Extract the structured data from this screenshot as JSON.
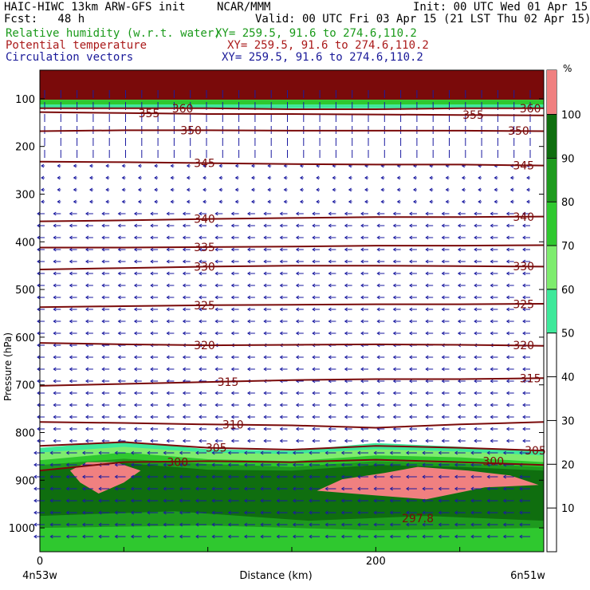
{
  "header": {
    "line1_left": "HAIC-HIWC 13km ARW-GFS init",
    "line1_mid": "NCAR/MMM",
    "line1_right": "Init: 00 UTC Wed 01 Apr 15",
    "line2_left": "Fcst:   48 h",
    "line2_right": "Valid: 00 UTC Fri 03 Apr 15 (21 LST Thu 02 Apr 15)",
    "field1_name": "Relative humidity (w.r.t. water)",
    "field1_xy": "XY= 259.5, 91.6 to 274.6,110.2",
    "field2_name": "Potential temperature",
    "field2_xy": "XY= 259.5, 91.6 to 274.6,110.2",
    "field3_name": "Circulation vectors",
    "field3_xy": "XY= 259.5, 91.6 to 274.6,110.2"
  },
  "colors": {
    "rh_50_60": "#3ee89a",
    "rh_60_70": "#7eec6e",
    "rh_70_80": "#2fc82f",
    "rh_80_90": "#1e9a1e",
    "rh_90_100": "#0f6e0f",
    "rh_100_plus": "#f08080",
    "theta_line": "#7a0a0a",
    "top_band": "#7a0a0a",
    "vector": "#1a1aa0"
  },
  "chart_data": {
    "type": "cross-section",
    "xlabel": "Distance (km)",
    "ylabel": "Pressure (hPa)",
    "x_ticks": [
      "0",
      "200"
    ],
    "x_end_labels": [
      "4n53w",
      "6n51w"
    ],
    "xlim": [
      0,
      300
    ],
    "y_ticks": [
      "100",
      "200",
      "300",
      "400",
      "500",
      "600",
      "700",
      "800",
      "900",
      "1000"
    ],
    "ylim": [
      1050,
      40
    ],
    "colorbar": {
      "unit": "%",
      "labels": [
        "10",
        "20",
        "30",
        "40",
        "50",
        "60",
        "70",
        "80",
        "90",
        "100"
      ],
      "bins": [
        {
          "min": 50,
          "max": 60,
          "color": "#3ee89a"
        },
        {
          "min": 60,
          "max": 70,
          "color": "#7eec6e"
        },
        {
          "min": 70,
          "max": 80,
          "color": "#2fc82f"
        },
        {
          "min": 80,
          "max": 90,
          "color": "#1e9a1e"
        },
        {
          "min": 90,
          "max": 100,
          "color": "#0f6e0f"
        },
        {
          "min": 100,
          "max": 110,
          "color": "#f08080"
        }
      ]
    },
    "theta_contours": [
      {
        "label": "360",
        "p": [
          120,
          120,
          120,
          122,
          122,
          120,
          120
        ],
        "label_positions": [
          [
            85,
            120
          ],
          [
            292,
            120
          ]
        ]
      },
      {
        "label": "355",
        "p": [
          128,
          130,
          132,
          132,
          133,
          134,
          135
        ],
        "label_positions": [
          [
            65,
            130
          ],
          [
            258,
            134
          ]
        ]
      },
      {
        "label": "350",
        "p": [
          168,
          166,
          166,
          167,
          167,
          167,
          168
        ],
        "label_positions": [
          [
            90,
            166
          ],
          [
            285,
            167
          ]
        ]
      },
      {
        "label": "345",
        "p": [
          232,
          233,
          235,
          237,
          238,
          238,
          240
        ],
        "label_positions": [
          [
            98,
            235
          ],
          [
            288,
            240
          ]
        ]
      },
      {
        "label": "340",
        "p": [
          357,
          355,
          352,
          350,
          348,
          348,
          347
        ],
        "label_positions": [
          [
            98,
            352
          ],
          [
            288,
            348
          ]
        ]
      },
      {
        "label": "335",
        "p": [
          412,
          412,
          411,
          410,
          408,
          408,
          407
        ],
        "label_positions": [
          [
            98,
            411
          ]
        ]
      },
      {
        "label": "330",
        "p": [
          458,
          455,
          452,
          450,
          450,
          451,
          452
        ],
        "label_positions": [
          [
            98,
            452
          ],
          [
            288,
            451
          ]
        ]
      },
      {
        "label": "325",
        "p": [
          537,
          535,
          533,
          532,
          531,
          531,
          530
        ],
        "label_positions": [
          [
            98,
            533
          ],
          [
            288,
            531
          ]
        ]
      },
      {
        "label": "320",
        "p": [
          612,
          615,
          617,
          616,
          615,
          616,
          618
        ],
        "label_positions": [
          [
            98,
            617
          ],
          [
            288,
            617
          ]
        ]
      },
      {
        "label": "315",
        "p": [
          702,
          698,
          694,
          690,
          688,
          688,
          686
        ],
        "label_positions": [
          [
            112,
            694
          ],
          [
            292,
            686
          ]
        ]
      },
      {
        "label": "310",
        "p": [
          778,
          780,
          783,
          785,
          790,
          783,
          778
        ],
        "label_positions": [
          [
            115,
            783
          ]
        ]
      },
      {
        "label": "305",
        "p": [
          828,
          820,
          832,
          836,
          828,
          832,
          838
        ],
        "label_positions": [
          [
            105,
            832
          ],
          [
            295,
            838
          ]
        ]
      },
      {
        "label": "300",
        "p": [
          880,
          862,
          860,
          862,
          857,
          862,
          868
        ],
        "label_positions": [
          [
            82,
            862
          ],
          [
            270,
            860
          ]
        ]
      }
    ],
    "annotations": [
      {
        "text": "297.8",
        "x": 225,
        "p": 988
      }
    ]
  }
}
